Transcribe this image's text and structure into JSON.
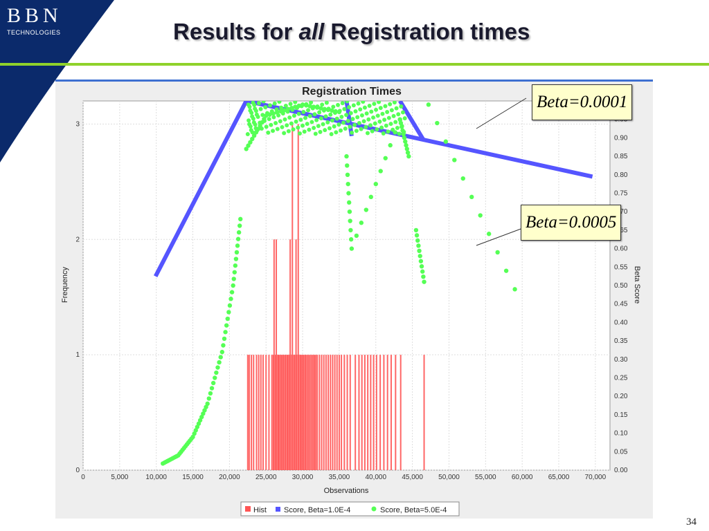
{
  "slide": {
    "logo_letters": "BBN",
    "logo_sub": "TECHNOLOGIES",
    "title_pre": "Results for ",
    "title_em": "all",
    "title_post": " Registration times",
    "page_number": "34",
    "accent_color": "#8fd22b",
    "logo_color": "#0b2a6b"
  },
  "callouts": [
    {
      "text": "Beta=0.0001"
    },
    {
      "text": "Beta=0.0005"
    }
  ],
  "chart_data": {
    "type": "bar",
    "title": "Registration Times",
    "xlabel": "Observations",
    "ylabel": "Frequency",
    "y2label": "Beta Score",
    "xlim": [
      0,
      72000
    ],
    "ylim": [
      0,
      3.2
    ],
    "y2lim": [
      0.0,
      1.0
    ],
    "x_ticks": [
      "0",
      "5,000",
      "10,000",
      "15,000",
      "20,000",
      "25,000",
      "30,000",
      "35,000",
      "40,000",
      "45,000",
      "50,000",
      "55,000",
      "60,000",
      "65,000",
      "70,000"
    ],
    "y_ticks": [
      "0",
      "1",
      "2",
      "3"
    ],
    "y2_ticks": [
      "0.00",
      "0.05",
      "0.10",
      "0.15",
      "0.20",
      "0.25",
      "0.30",
      "0.35",
      "0.40",
      "0.45",
      "0.50",
      "0.55",
      "0.60",
      "0.65",
      "0.70",
      "0.75",
      "0.80",
      "0.85",
      "0.90",
      "0.95"
    ],
    "grid": true,
    "legend_position": "bottom",
    "legend": [
      "Hist",
      "Score, Beta=1.0E-4",
      "Score, Beta=5.0E-4"
    ],
    "colors": {
      "hist": "#ff5555",
      "beta1": "#5555ff",
      "beta5": "#55ff55"
    },
    "hist": {
      "x": [
        22500,
        22700,
        23000,
        23300,
        23700,
        24000,
        24300,
        24600,
        25000,
        25400,
        25800,
        26000,
        26100,
        26300,
        26400,
        26600,
        26700,
        26800,
        27000,
        27100,
        27300,
        27400,
        27600,
        27700,
        27900,
        28000,
        28200,
        28300,
        28500,
        28600,
        28800,
        28900,
        29100,
        29200,
        29400,
        29500,
        29700,
        29800,
        30000,
        30100,
        30300,
        30400,
        30600,
        30800,
        31000,
        31200,
        31400,
        31600,
        31800,
        32000,
        32300,
        32600,
        32900,
        33200,
        33500,
        33800,
        34100,
        34400,
        34700,
        35000,
        35300,
        35700,
        36100,
        36500,
        37200,
        37700,
        38100,
        38500,
        38900,
        39300,
        39700,
        40100,
        40600,
        41100,
        41600,
        42100,
        42700,
        43400,
        46600
      ],
      "values": [
        1,
        1,
        1,
        1,
        1,
        1,
        1,
        1,
        1,
        1,
        1,
        1,
        2,
        1,
        2,
        1,
        1,
        1,
        1,
        1,
        1,
        1,
        1,
        1,
        1,
        1,
        1,
        2,
        1,
        3,
        1,
        1,
        2,
        1,
        3,
        1,
        1,
        1,
        1,
        1,
        1,
        1,
        1,
        1,
        1,
        1,
        1,
        1,
        1,
        1,
        1,
        1,
        1,
        1,
        1,
        1,
        1,
        1,
        1,
        1,
        1,
        1,
        1,
        1,
        1,
        1,
        1,
        1,
        1,
        1,
        1,
        1,
        1,
        1,
        1,
        1,
        1,
        1,
        1
      ]
    },
    "series": [
      {
        "name": "Score, Beta=1.0E-4",
        "x": [
          9900,
          22300,
          46500,
          69600
        ],
        "y": [
          0.525,
          1.0,
          0.895,
          0.795
        ],
        "secondary_points": [
          [
            36000,
            1.0
          ],
          [
            36700,
            0.905
          ],
          [
            43300,
            1.0
          ],
          [
            46500,
            0.895
          ]
        ]
      },
      {
        "name": "Score, Beta=5.0E-4",
        "x": [
          10900,
          13000,
          15000,
          17000,
          19000,
          20500,
          21500,
          22300,
          25000,
          30000,
          35000,
          36000,
          36700,
          43300,
          44500,
          45500,
          46600,
          47200,
          59000
        ],
        "y": [
          0.018,
          0.04,
          0.09,
          0.18,
          0.32,
          0.5,
          0.68,
          0.87,
          0.96,
          0.99,
          0.97,
          0.85,
          0.6,
          0.95,
          0.85,
          0.65,
          0.51,
          0.99,
          0.49
        ]
      }
    ]
  }
}
